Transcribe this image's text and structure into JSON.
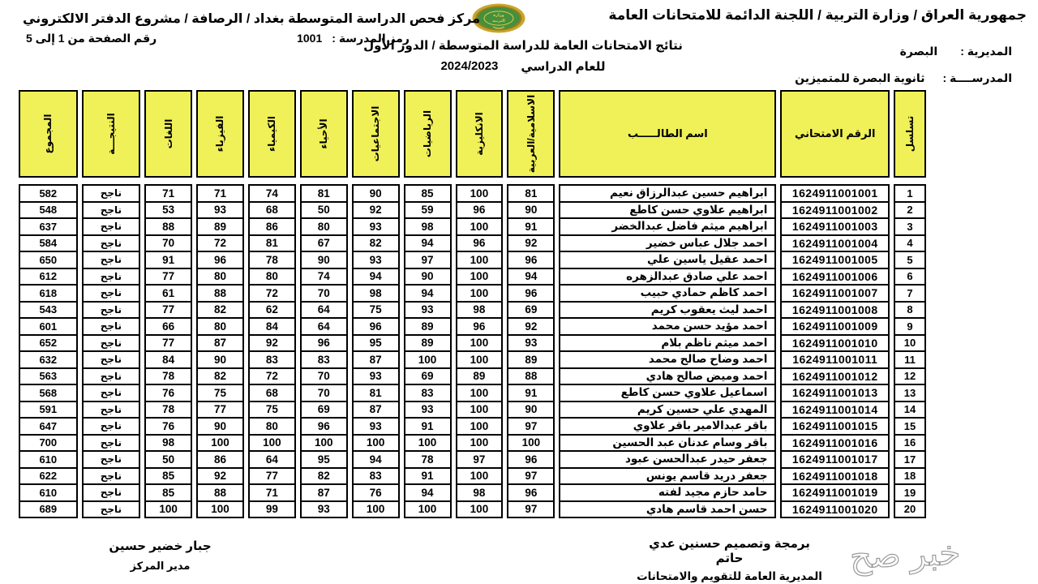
{
  "header": {
    "gov_title": "جمهورية العراق / وزارة التربية / اللجنة الدائمة للامتحانات العامة",
    "center_title": "مركز فحص الدراسة المتوسطة بغداد / الرصافة / مشروع الدفتر الالكتروني",
    "logo_name": "iraq-ministry-of-education-emblem",
    "page_range": "رقم الصفحة من  1 إلى  5",
    "school_code_label": "رمز المدرسة :",
    "school_code": "1001",
    "results_title": "نتائج الامتحانات العامة للدراسة المتوسطة / الدور الأول",
    "year_label": "للعام الدراسي",
    "year_value": "2024/2023",
    "directorate_label": "المديرية :",
    "directorate_value": "البصرة",
    "school_label": "المدرســــة :",
    "school_value": "ثانوية البصرة للمتميزين"
  },
  "table": {
    "columns": [
      {
        "key": "serial",
        "label": "تسلسل",
        "vertical": true
      },
      {
        "key": "exam_no",
        "label": "الرقم الامتحاني",
        "vertical": false
      },
      {
        "key": "name",
        "label": "اسم الطالـــــب",
        "vertical": false
      },
      {
        "key": "islamic_arabic",
        "label": "الاسلامية/العربية",
        "vertical": true
      },
      {
        "key": "english",
        "label": "الانكليزية",
        "vertical": true
      },
      {
        "key": "math",
        "label": "الرياضيات",
        "vertical": true
      },
      {
        "key": "social_studies",
        "label": "الاجتماعيات",
        "vertical": true
      },
      {
        "key": "biology",
        "label": "الأحياء",
        "vertical": true
      },
      {
        "key": "chemistry",
        "label": "الكيمياء",
        "vertical": true
      },
      {
        "key": "physics",
        "label": "الفيزياء",
        "vertical": true
      },
      {
        "key": "languages",
        "label": "اللغات",
        "vertical": true
      },
      {
        "key": "result",
        "label": "النتيجـــة",
        "vertical": true
      },
      {
        "key": "total",
        "label": "المجموع",
        "vertical": true
      }
    ],
    "rows": [
      {
        "serial": 1,
        "exam_no": "1624911001001",
        "name": "ابراهيم حسين عبدالرزاق نعيم",
        "scores": [
          81,
          100,
          85,
          90,
          81,
          74,
          71,
          71
        ],
        "result": "ناجح",
        "total": 582
      },
      {
        "serial": 2,
        "exam_no": "1624911001002",
        "name": "ابراهيم علاوي حسن كاطع",
        "scores": [
          90,
          96,
          59,
          92,
          50,
          68,
          93,
          53
        ],
        "result": "ناجح",
        "total": 548
      },
      {
        "serial": 3,
        "exam_no": "1624911001003",
        "name": "ابراهيم ميثم فاضل عبدالخضر",
        "scores": [
          91,
          100,
          98,
          93,
          80,
          86,
          89,
          88
        ],
        "result": "ناجح",
        "total": 637
      },
      {
        "serial": 4,
        "exam_no": "1624911001004",
        "name": "احمد جلال عباس خضير",
        "scores": [
          92,
          96,
          94,
          82,
          67,
          81,
          72,
          70
        ],
        "result": "ناجح",
        "total": 584
      },
      {
        "serial": 5,
        "exam_no": "1624911001005",
        "name": "احمد عقيل ياسين علي",
        "scores": [
          96,
          100,
          97,
          93,
          90,
          78,
          96,
          91
        ],
        "result": "ناجح",
        "total": 650
      },
      {
        "serial": 6,
        "exam_no": "1624911001006",
        "name": "احمد علي صادق عبدالزهره",
        "scores": [
          94,
          100,
          90,
          94,
          74,
          80,
          80,
          77
        ],
        "result": "ناجح",
        "total": 612
      },
      {
        "serial": 7,
        "exam_no": "1624911001007",
        "name": "احمد كاظم حمادي حبيب",
        "scores": [
          96,
          100,
          94,
          98,
          70,
          72,
          88,
          61
        ],
        "result": "ناجح",
        "total": 618
      },
      {
        "serial": 8,
        "exam_no": "1624911001008",
        "name": "احمد ليث يعقوب كريم",
        "scores": [
          69,
          98,
          93,
          75,
          64,
          62,
          82,
          77
        ],
        "result": "ناجح",
        "total": 543
      },
      {
        "serial": 9,
        "exam_no": "1624911001009",
        "name": "احمد مؤيد حسن محمد",
        "scores": [
          92,
          96,
          89,
          96,
          64,
          84,
          80,
          66
        ],
        "result": "ناجح",
        "total": 601
      },
      {
        "serial": 10,
        "exam_no": "1624911001010",
        "name": "احمد ميثم ناظم بلام",
        "scores": [
          93,
          100,
          89,
          95,
          96,
          92,
          87,
          77
        ],
        "result": "ناجح",
        "total": 652
      },
      {
        "serial": 11,
        "exam_no": "1624911001011",
        "name": "احمد وضاح صالح محمد",
        "scores": [
          89,
          100,
          100,
          87,
          83,
          83,
          90,
          84
        ],
        "result": "ناجح",
        "total": 632
      },
      {
        "serial": 12,
        "exam_no": "1624911001012",
        "name": "احمد وميض صالح هادي",
        "scores": [
          88,
          89,
          69,
          93,
          70,
          72,
          82,
          78
        ],
        "result": "ناجح",
        "total": 563
      },
      {
        "serial": 13,
        "exam_no": "1624911001013",
        "name": "اسماعيل علاوي حسن كاطع",
        "scores": [
          91,
          100,
          83,
          81,
          70,
          68,
          75,
          76
        ],
        "result": "ناجح",
        "total": 568
      },
      {
        "serial": 14,
        "exam_no": "1624911001014",
        "name": "المهدي علي حسين كريم",
        "scores": [
          90,
          100,
          93,
          87,
          69,
          75,
          77,
          78
        ],
        "result": "ناجح",
        "total": 591
      },
      {
        "serial": 15,
        "exam_no": "1624911001015",
        "name": "باقر عبدالامير باقر علاوي",
        "scores": [
          97,
          100,
          91,
          93,
          96,
          80,
          90,
          76
        ],
        "result": "ناجح",
        "total": 647
      },
      {
        "serial": 16,
        "exam_no": "1624911001016",
        "name": "باقر وسام عدنان عبد الحسين",
        "scores": [
          100,
          100,
          100,
          100,
          100,
          100,
          100,
          98
        ],
        "result": "ناجح",
        "total": 700
      },
      {
        "serial": 17,
        "exam_no": "1624911001017",
        "name": "جعفر حيدر عبدالحسن عبود",
        "scores": [
          96,
          97,
          78,
          94,
          95,
          64,
          86,
          50
        ],
        "result": "ناجح",
        "total": 610
      },
      {
        "serial": 18,
        "exam_no": "1624911001018",
        "name": "جعفر دريد قاسم يونس",
        "scores": [
          97,
          100,
          91,
          83,
          82,
          77,
          92,
          85
        ],
        "result": "ناجح",
        "total": 622
      },
      {
        "serial": 19,
        "exam_no": "1624911001019",
        "name": "حامد حازم مجيد لفته",
        "scores": [
          96,
          98,
          94,
          76,
          87,
          71,
          88,
          85
        ],
        "result": "ناجح",
        "total": 610
      },
      {
        "serial": 20,
        "exam_no": "1624911001020",
        "name": "حسن احمد قاسم هادي",
        "scores": [
          97,
          100,
          100,
          100,
          93,
          99,
          100,
          100
        ],
        "result": "ناجح",
        "total": 689
      }
    ]
  },
  "footer": {
    "manager_name": "جبار خضير حسين",
    "manager_title": "مدير المركز",
    "credit_line1": "برمجة وتصميم حسنين عدي حاتم",
    "credit_line2": "المديرية العامة للتقويم والامتحانات",
    "watermark": "خبر صح"
  },
  "colors": {
    "header_yellow": "#F0F058",
    "table_border": "#000000",
    "watermark_gray": "#9A9A9A",
    "logo_gold": "#C8A62B",
    "logo_green": "#44903C"
  }
}
